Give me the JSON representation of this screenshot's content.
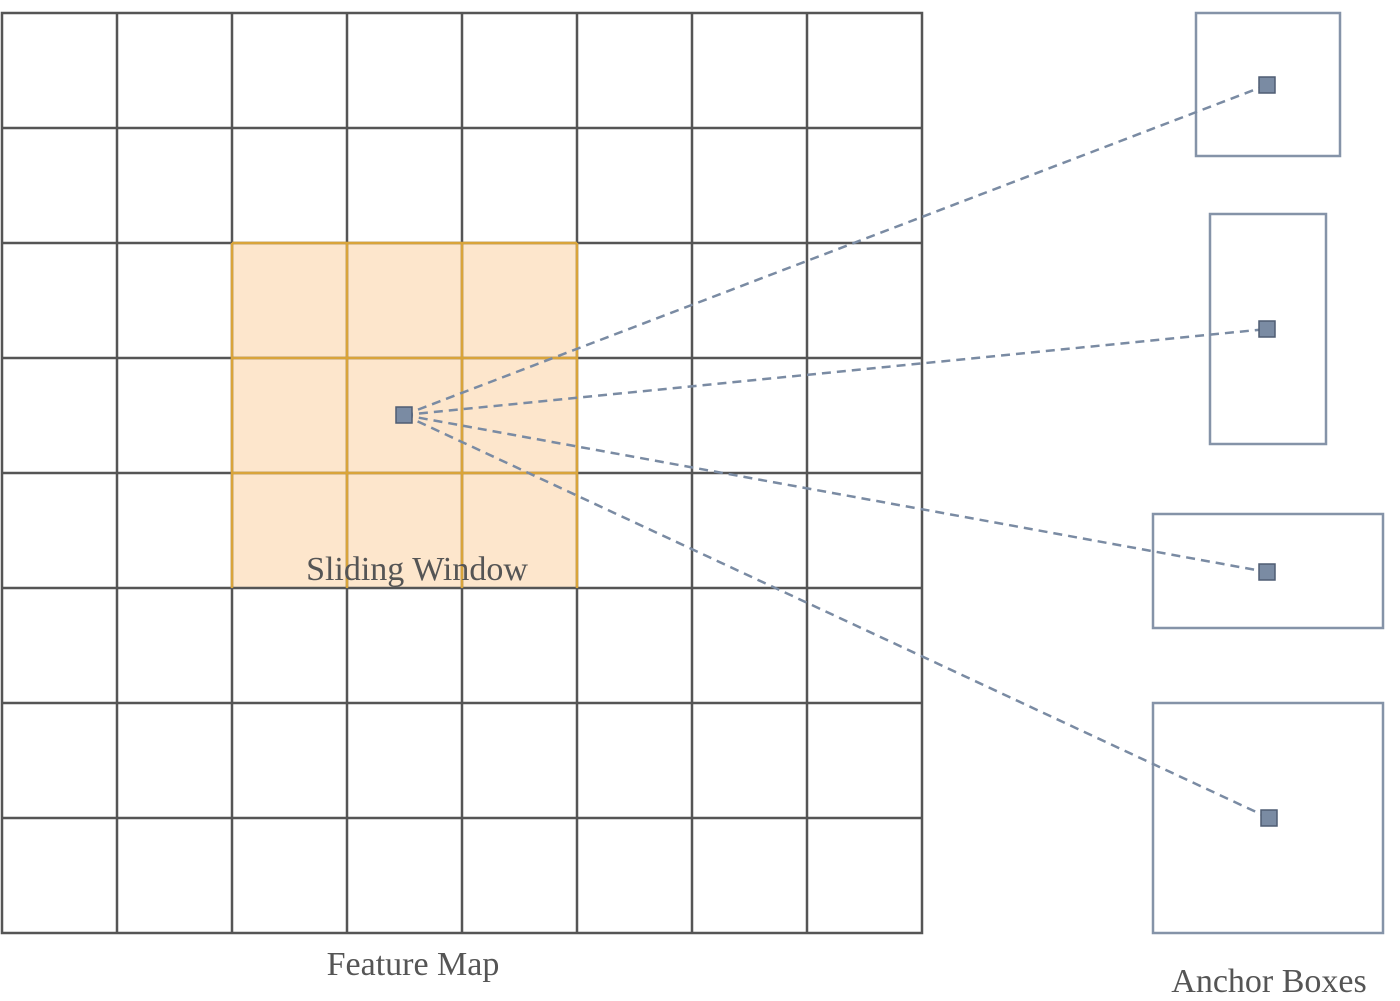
{
  "feature_map": {
    "label": "Feature Map",
    "rows": 8,
    "cols": 8,
    "grid_color": "#555555"
  },
  "sliding_window": {
    "label": "Sliding Window",
    "row_start": 2,
    "col_start": 2,
    "size": 3,
    "fill_color": "#fde6cc",
    "border_color": "#d9a43a"
  },
  "anchor_boxes": {
    "label": "Anchor Boxes",
    "count": 4,
    "box_color": "#8593a8",
    "marker_color": "#7a8ba3",
    "line_color": "#7a8ba3"
  }
}
